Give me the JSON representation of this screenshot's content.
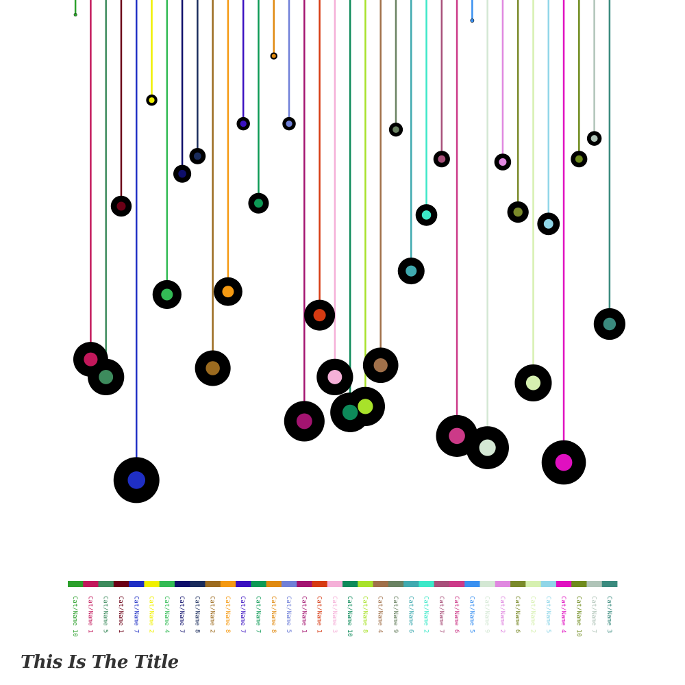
{
  "title": "This Is The Title",
  "chart_data": {
    "type": "lollipop",
    "title": "This Is The Title",
    "xlabel": "",
    "ylabel": "",
    "ylim": [
      0,
      100
    ],
    "note": "each category column: stem length encodes value, black halo size scales with value",
    "categories": [
      {
        "label": "Cat/Name 10",
        "value": 2.5,
        "color": "#2ca02c"
      },
      {
        "label": "Cat/Name 1",
        "value": 61.0,
        "color": "#c2185b"
      },
      {
        "label": "Cat/Name 5",
        "value": 64.0,
        "color": "#3d8b5d"
      },
      {
        "label": "Cat/Name 1",
        "value": 35.0,
        "color": "#6b0016"
      },
      {
        "label": "Cat/Name 7",
        "value": 81.5,
        "color": "#1f2fc4"
      },
      {
        "label": "Cat/Name 2",
        "value": 17.0,
        "color": "#f0f000"
      },
      {
        "label": "Cat/Name 4",
        "value": 50.0,
        "color": "#33bb55"
      },
      {
        "label": "Cat/Name 7",
        "value": 29.5,
        "color": "#0e0e6b"
      },
      {
        "label": "Cat/Name 8",
        "value": 26.5,
        "color": "#1a2c5c"
      },
      {
        "label": "Cat/Name 2",
        "value": 62.5,
        "color": "#9c6b1f"
      },
      {
        "label": "Cat/Name 8",
        "value": 49.5,
        "color": "#f59a12"
      },
      {
        "label": "Cat/Name 7",
        "value": 21.0,
        "color": "#3a10c0"
      },
      {
        "label": "Cat/Name 7",
        "value": 34.5,
        "color": "#0d9a55"
      },
      {
        "label": "Cat/Name 8",
        "value": 9.5,
        "color": "#e08a10"
      },
      {
        "label": "Cat/Name 5",
        "value": 21.0,
        "color": "#7080d8"
      },
      {
        "label": "Cat/Name 1",
        "value": 71.5,
        "color": "#a31470"
      },
      {
        "label": "Cat/Name 1",
        "value": 53.5,
        "color": "#d63a12"
      },
      {
        "label": "Cat/Name 3",
        "value": 64.0,
        "color": "#f5b0d8"
      },
      {
        "label": "Cat/Name 10",
        "value": 70.0,
        "color": "#0d8a5a"
      },
      {
        "label": "Cat/Name 8",
        "value": 69.0,
        "color": "#a8e22a"
      },
      {
        "label": "Cat/Name 4",
        "value": 62.0,
        "color": "#a0704a"
      },
      {
        "label": "Cat/Name 9",
        "value": 22.0,
        "color": "#6a8262"
      },
      {
        "label": "Cat/Name 6",
        "value": 46.0,
        "color": "#40aab0"
      },
      {
        "label": "Cat/Name 2",
        "value": 36.5,
        "color": "#3ce8c8"
      },
      {
        "label": "Cat/Name 7",
        "value": 27.0,
        "color": "#a8507a"
      },
      {
        "label": "Cat/Name 6",
        "value": 74.0,
        "color": "#cc3a88"
      },
      {
        "label": "Cat/Name 5",
        "value": 3.5,
        "color": "#3a90f0"
      },
      {
        "label": "Cat/Name 9",
        "value": 76.0,
        "color": "#d4e8d4"
      },
      {
        "label": "Cat/Name 2",
        "value": 27.5,
        "color": "#e088e0"
      },
      {
        "label": "Cat/Name 6",
        "value": 36.0,
        "color": "#7a8a2a"
      },
      {
        "label": "Cat/Name 2",
        "value": 65.0,
        "color": "#d6f0b0"
      },
      {
        "label": "Cat/Name 5",
        "value": 38.0,
        "color": "#90d6e8"
      },
      {
        "label": "Cat/Name 4",
        "value": 78.5,
        "color": "#e010c0"
      },
      {
        "label": "Cat/Name 10",
        "value": 27.0,
        "color": "#6e8a1c"
      },
      {
        "label": "Cat/Name 7",
        "value": 23.5,
        "color": "#b0c4b8"
      },
      {
        "label": "Cat/Name 3",
        "value": 55.0,
        "color": "#3a8a7e"
      }
    ]
  }
}
